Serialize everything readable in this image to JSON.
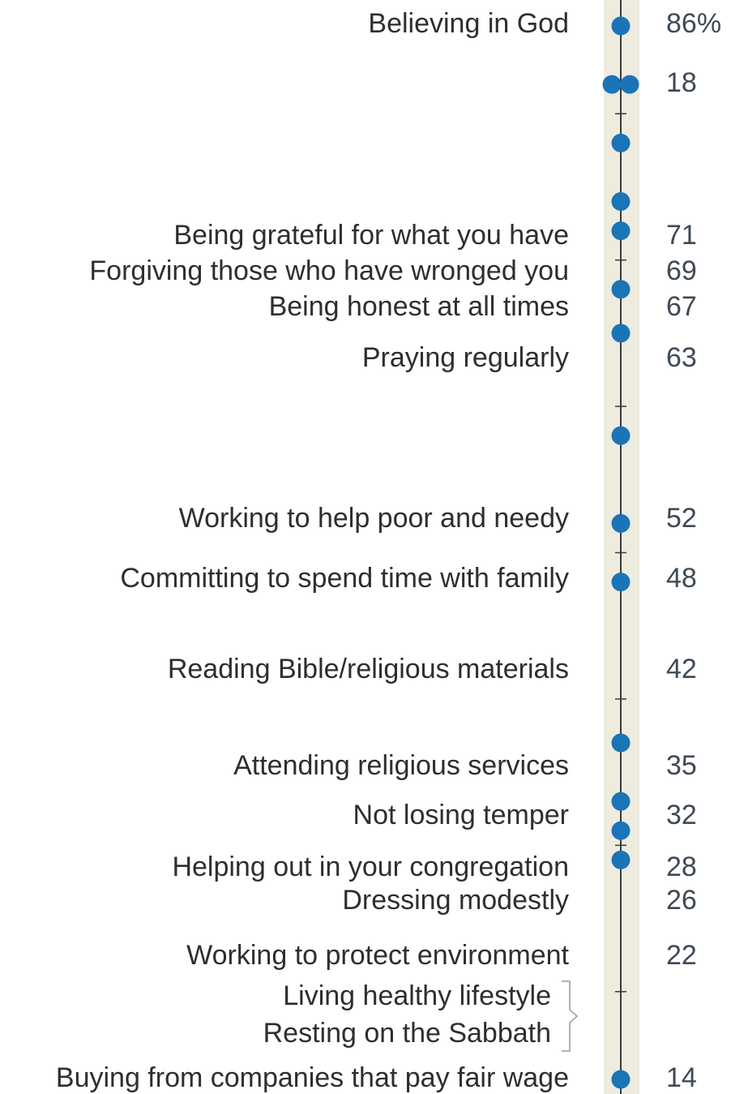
{
  "chart_data": {
    "type": "dot",
    "title": "",
    "xlabel": "",
    "ylabel": "",
    "value_suffix_first": "%",
    "categories": [
      "Believing in God",
      "Being grateful for what you have",
      "Forgiving those who have wronged you",
      "Being honest at all times",
      "Praying regularly",
      "Working to help poor and needy",
      "Committing to spend time with family",
      "Reading Bible/religious materials",
      "Attending religious services",
      "Not losing temper",
      "Helping out in your congregation",
      "Dressing modestly",
      "Working to protect environment",
      "Living healthy lifestyle",
      "Resting on the Sabbath",
      "Buying from companies that pay fair wage"
    ],
    "values": [
      86,
      71,
      69,
      67,
      63,
      52,
      48,
      42,
      35,
      32,
      28,
      26,
      22,
      18,
      18,
      14
    ],
    "value_labels": [
      "86%",
      "71",
      "69",
      "67",
      "63",
      "52",
      "48",
      "42",
      "35",
      "32",
      "28",
      "26",
      "22",
      "18",
      "",
      "14"
    ],
    "grouped_pair": [
      "Living healthy lifestyle",
      "Resting on the Sabbath"
    ],
    "colors": {
      "dot": "#1a74b8",
      "axis_band": "#eeebdf",
      "axis_line": "#3a3a3a",
      "label": "#2e2e2e",
      "value": "#3f4a55",
      "bracket": "#9a9a9a"
    }
  }
}
